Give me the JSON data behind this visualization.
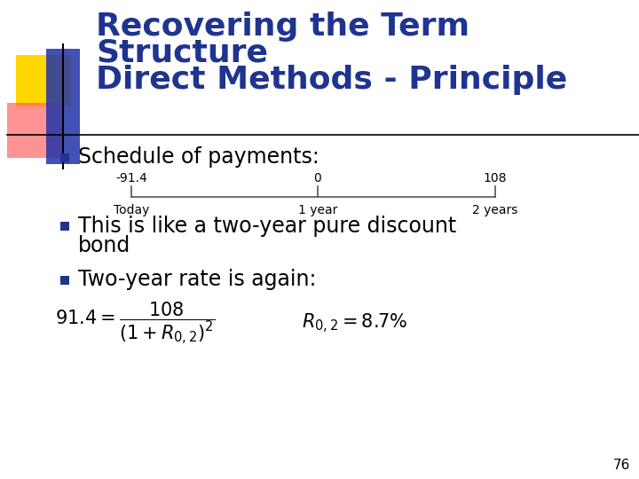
{
  "title_line1": "Recovering the Term",
  "title_line2": "Structure",
  "title_line3": "Direct Methods - Principle",
  "title_color": "#1F3490",
  "background_color": "#FFFFFF",
  "bullet_color": "#1F3490",
  "text_color": "#000000",
  "bullet1": "Schedule of payments:",
  "bullet2_line1": "This is like a two-year pure discount",
  "bullet2_line2": "bond",
  "bullet3": "Two-year rate is again:",
  "timeline_labels_top": [
    "-91.4",
    "0",
    "108"
  ],
  "timeline_labels_bottom": [
    "Today",
    "1 year",
    "2 years"
  ],
  "page_number": "76",
  "yellow_color": "#FFD700",
  "red_color": "#FF6666",
  "blue_color": "#2233AA",
  "font_size_title": 26,
  "font_size_bullet": 17,
  "font_size_timeline": 10,
  "font_size_formula": 15,
  "font_size_page": 11
}
